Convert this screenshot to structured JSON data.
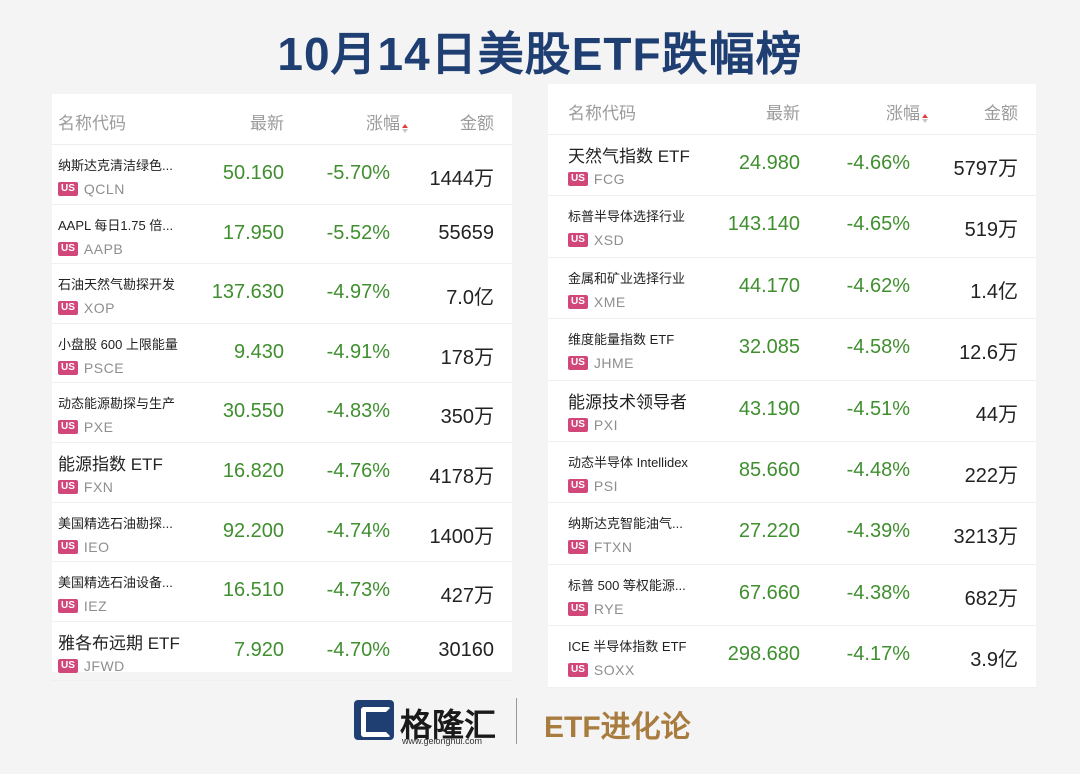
{
  "title": "10月14日美股ETF跌幅榜",
  "headers": {
    "name": "名称代码",
    "price": "最新",
    "change": "涨幅",
    "amount": "金额"
  },
  "badge": "US",
  "left_rows": [
    {
      "name": "纳斯达克清洁绿色...",
      "code": "QCLN",
      "price": "50.160",
      "change": "-5.70%",
      "amount": "1444万"
    },
    {
      "name": "AAPL 每日1.75 倍...",
      "code": "AAPB",
      "price": "17.950",
      "change": "-5.52%",
      "amount": "55659"
    },
    {
      "name": "石油天然气勘探开发",
      "code": "XOP",
      "price": "137.630",
      "change": "-4.97%",
      "amount": "7.0亿"
    },
    {
      "name": "小盘股 600 上限能量",
      "code": "PSCE",
      "price": "9.430",
      "change": "-4.91%",
      "amount": "178万"
    },
    {
      "name": "动态能源勘探与生产",
      "code": "PXE",
      "price": "30.550",
      "change": "-4.83%",
      "amount": "350万"
    },
    {
      "name": "能源指数 ETF",
      "code": "FXN",
      "price": "16.820",
      "change": "-4.76%",
      "amount": "4178万",
      "big": true
    },
    {
      "name": "美国精选石油勘探...",
      "code": "IEO",
      "price": "92.200",
      "change": "-4.74%",
      "amount": "1400万"
    },
    {
      "name": "美国精选石油设备...",
      "code": "IEZ",
      "price": "16.510",
      "change": "-4.73%",
      "amount": "427万"
    },
    {
      "name": "雅各布远期 ETF",
      "code": "JFWD",
      "price": "7.920",
      "change": "-4.70%",
      "amount": "30160",
      "big": true
    }
  ],
  "right_rows": [
    {
      "name": "天然气指数 ETF",
      "code": "FCG",
      "price": "24.980",
      "change": "-4.66%",
      "amount": "5797万",
      "big": true
    },
    {
      "name": "标普半导体选择行业",
      "code": "XSD",
      "price": "143.140",
      "change": "-4.65%",
      "amount": "519万"
    },
    {
      "name": "金属和矿业选择行业",
      "code": "XME",
      "price": "44.170",
      "change": "-4.62%",
      "amount": "1.4亿"
    },
    {
      "name": "维度能量指数 ETF",
      "code": "JHME",
      "price": "32.085",
      "change": "-4.58%",
      "amount": "12.6万"
    },
    {
      "name": "能源技术领导者",
      "code": "PXI",
      "price": "43.190",
      "change": "-4.51%",
      "amount": "44万",
      "big": true
    },
    {
      "name": "动态半导体 Intellidex",
      "code": "PSI",
      "price": "85.660",
      "change": "-4.48%",
      "amount": "222万"
    },
    {
      "name": "纳斯达克智能油气...",
      "code": "FTXN",
      "price": "27.220",
      "change": "-4.39%",
      "amount": "3213万"
    },
    {
      "name": "标普 500 等权能源...",
      "code": "RYE",
      "price": "67.660",
      "change": "-4.38%",
      "amount": "682万"
    },
    {
      "name": "ICE 半导体指数 ETF",
      "code": "SOXX",
      "price": "298.680",
      "change": "-4.17%",
      "amount": "3.9亿"
    }
  ],
  "footer": {
    "brand": "格隆汇",
    "site": "www.gelonghui.com",
    "column": "ETF进化论"
  },
  "colors": {
    "title": "#1f3f73",
    "down": "#3f8f2f",
    "badge": "#d1477a",
    "column": "#a87b3e"
  }
}
